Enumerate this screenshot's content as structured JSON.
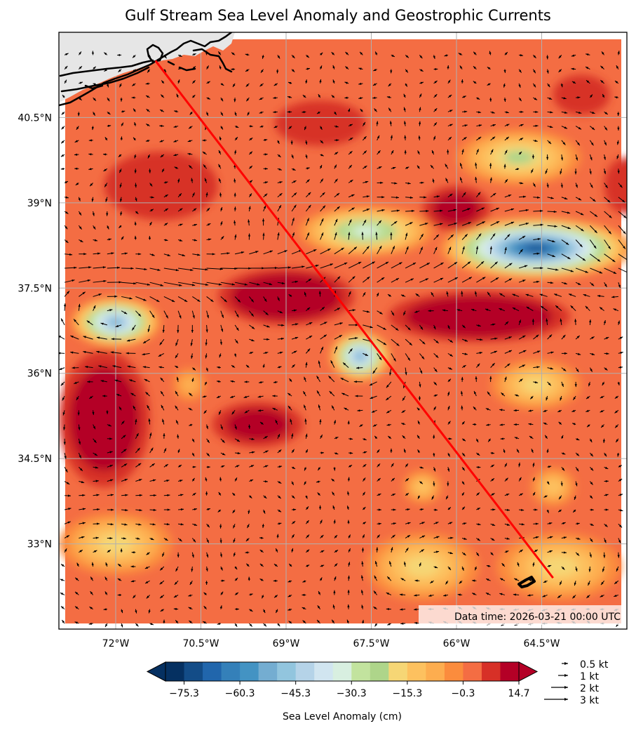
{
  "title": "Gulf Stream Sea Level Anomaly and Geostrophic Currents",
  "map": {
    "lon_range": [
      -73,
      -63
    ],
    "lat_range": [
      31.5,
      42
    ],
    "lon_ticks": [
      {
        "value": -72,
        "label": "72°W"
      },
      {
        "value": -70.5,
        "label": "70.5°W"
      },
      {
        "value": -69,
        "label": "69°W"
      },
      {
        "value": -67.5,
        "label": "67.5°W"
      },
      {
        "value": -66,
        "label": "66°W"
      },
      {
        "value": -64.5,
        "label": "64.5°W"
      }
    ],
    "lat_ticks": [
      {
        "value": 40.5,
        "label": "40.5°N"
      },
      {
        "value": 39,
        "label": "39°N"
      },
      {
        "value": 37.5,
        "label": "37.5°N"
      },
      {
        "value": 36,
        "label": "36°N"
      },
      {
        "value": 34.5,
        "label": "34.5°N"
      },
      {
        "value": 33,
        "label": "33°N"
      }
    ],
    "gridlines": true,
    "land_color": "#e6e6e6",
    "coast_color": "#000000",
    "track": {
      "color": "#ff0000",
      "points": [
        [
          -71.3,
          41.5
        ],
        [
          -64.3,
          32.4
        ]
      ]
    },
    "data_time": "Data time: 2026-03-21 00:00 UTC",
    "sla_features": [
      {
        "lon": -72.0,
        "lat": 36.9,
        "sla": -55,
        "rx": 0.8,
        "ry": 0.45
      },
      {
        "lon": -67.7,
        "lat": 36.3,
        "sla": -55,
        "rx": 0.55,
        "ry": 0.45
      },
      {
        "lon": -64.6,
        "lat": 38.2,
        "sla": -75,
        "rx": 1.7,
        "ry": 0.55
      },
      {
        "lon": -67.6,
        "lat": 38.5,
        "sla": -35,
        "rx": 1.2,
        "ry": 0.45
      },
      {
        "lon": -64.9,
        "lat": 39.8,
        "sla": -22,
        "rx": 1.1,
        "ry": 0.5
      },
      {
        "lon": -69.0,
        "lat": 37.35,
        "sla": 28,
        "rx": 1.2,
        "ry": 0.5
      },
      {
        "lon": -65.6,
        "lat": 37.0,
        "sla": 32,
        "rx": 1.6,
        "ry": 0.45
      },
      {
        "lon": -72.2,
        "lat": 35.2,
        "sla": 26,
        "rx": 0.8,
        "ry": 1.2
      },
      {
        "lon": -69.5,
        "lat": 35.1,
        "sla": 18,
        "rx": 0.8,
        "ry": 0.4
      },
      {
        "lon": -66.0,
        "lat": 38.9,
        "sla": 18,
        "rx": 0.6,
        "ry": 0.4
      },
      {
        "lon": -71.2,
        "lat": 39.3,
        "sla": 10,
        "rx": 1.0,
        "ry": 0.6
      },
      {
        "lon": -72.0,
        "lat": 33.0,
        "sla": -20,
        "rx": 1.0,
        "ry": 0.55
      },
      {
        "lon": -66.6,
        "lat": 32.6,
        "sla": -18,
        "rx": 1.0,
        "ry": 0.6
      },
      {
        "lon": -64.2,
        "lat": 32.6,
        "sla": -18,
        "rx": 1.1,
        "ry": 0.6
      },
      {
        "lon": -64.6,
        "lat": 35.8,
        "sla": -18,
        "rx": 0.8,
        "ry": 0.45
      },
      {
        "lon": -70.7,
        "lat": 35.8,
        "sla": -10,
        "rx": 0.3,
        "ry": 0.3
      },
      {
        "lon": -64.3,
        "lat": 34.0,
        "sla": -12,
        "rx": 0.4,
        "ry": 0.35
      },
      {
        "lon": -66.6,
        "lat": 34.0,
        "sla": -12,
        "rx": 0.35,
        "ry": 0.3
      },
      {
        "lon": -68.4,
        "lat": 40.4,
        "sla": 10,
        "rx": 0.8,
        "ry": 0.4
      },
      {
        "lon": -63.8,
        "lat": 40.9,
        "sla": 10,
        "rx": 0.5,
        "ry": 0.35
      },
      {
        "lon": -63.0,
        "lat": 39.3,
        "sla": 12,
        "rx": 0.4,
        "ry": 0.5
      }
    ]
  },
  "colorbar": {
    "label": "Sea Level Anomaly (cm)",
    "min": -80.3,
    "step": 5,
    "colors": [
      "#053061",
      "#134c87",
      "#2166ac",
      "#3480b9",
      "#4393c3",
      "#74add1",
      "#92c5de",
      "#b5d3e8",
      "#d1e5f0",
      "#d8efe0",
      "#c2e39e",
      "#aed58a",
      "#f6d675",
      "#fdc15f",
      "#fdad4f",
      "#fb8c3d",
      "#f46d43",
      "#d73027",
      "#b40026"
    ],
    "tick_values": [
      -75.3,
      -60.3,
      -45.3,
      -30.3,
      -15.3,
      -0.3,
      14.7
    ],
    "tick_labels": [
      "−75.3",
      "−60.3",
      "−45.3",
      "−30.3",
      "−15.3",
      "−0.3",
      "14.7"
    ],
    "extend": "both"
  },
  "quiver_key": [
    {
      "speed": 0.5,
      "label": "0.5 kt"
    },
    {
      "speed": 1,
      "label": "1 kt"
    },
    {
      "speed": 2,
      "label": "2 kt"
    },
    {
      "speed": 3,
      "label": "3 kt"
    }
  ]
}
